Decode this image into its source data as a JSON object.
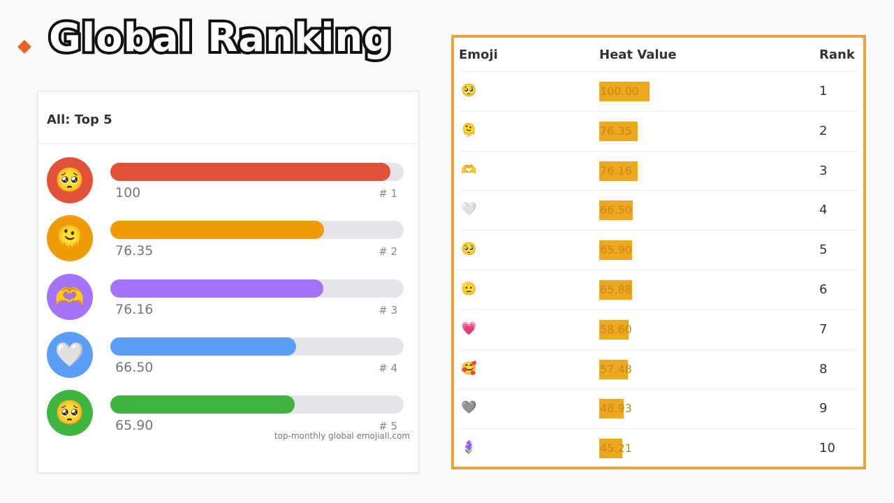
{
  "header": {
    "title": "Global Ranking"
  },
  "card": {
    "title": "All: Top 5",
    "items": [
      {
        "emoji": "🥺",
        "value": 100,
        "value_label": "100",
        "rank": "# 1",
        "color": "#e4513a"
      },
      {
        "emoji": "🫠",
        "value": 76.35,
        "value_label": "76.35",
        "rank": "# 2",
        "color": "#ed9c08"
      },
      {
        "emoji": "🫶",
        "value": 76.16,
        "value_label": "76.16",
        "rank": "# 3",
        "color": "#a374f7"
      },
      {
        "emoji": "🤍",
        "value": 66.5,
        "value_label": "66.50",
        "rank": "# 4",
        "color": "#5b9ef7"
      },
      {
        "emoji": "🥺",
        "value": 65.9,
        "value_label": "65.90",
        "rank": "# 5",
        "color": "#3fb53f"
      }
    ],
    "source": "top-monthly global emojiall.com"
  },
  "table": {
    "headers": [
      "Emoji",
      "Heat Value",
      "Rank"
    ],
    "rows": [
      {
        "emoji": "🥺",
        "heat": 100,
        "heat_label": "100.00",
        "rank": 1
      },
      {
        "emoji": "🫠",
        "heat": 76.35,
        "heat_label": "76.35",
        "rank": 2
      },
      {
        "emoji": "🫶",
        "heat": 76.16,
        "heat_label": "76.16",
        "rank": 3
      },
      {
        "emoji": "🤍",
        "heat": 66.5,
        "heat_label": "66.50",
        "rank": 4
      },
      {
        "emoji": "🥺",
        "heat": 65.9,
        "heat_label": "65.90",
        "rank": 5
      },
      {
        "emoji": "🫡",
        "heat": 65.88,
        "heat_label": "65.88",
        "rank": 6
      },
      {
        "emoji": "💗",
        "heat": 58.6,
        "heat_label": "58.60",
        "rank": 7
      },
      {
        "emoji": "🥰",
        "heat": 57.48,
        "heat_label": "57.48",
        "rank": 8
      },
      {
        "emoji": "🩶",
        "heat": 48.93,
        "heat_label": "48.93",
        "rank": 9
      },
      {
        "emoji": "🪻",
        "heat": 45.21,
        "heat_label": "45.21",
        "rank": 10
      }
    ]
  }
}
